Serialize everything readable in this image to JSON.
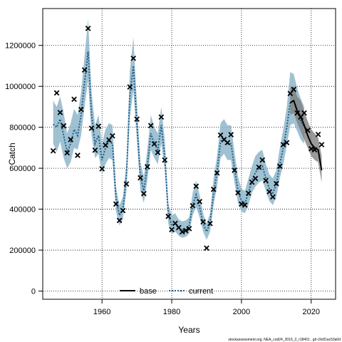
{
  "chart_data": {
    "type": "line",
    "xlabel": "Years",
    "ylabel": "Catch",
    "xlim": [
      1943,
      2027
    ],
    "ylim": [
      -40000,
      1380000
    ],
    "x_ticks": [
      1960,
      1980,
      2000,
      2020
    ],
    "y_ticks": [
      0,
      200000,
      400000,
      600000,
      800000,
      1000000,
      1200000
    ],
    "x_tick_labels": [
      "1960",
      "1980",
      "2000",
      "2020"
    ],
    "y_tick_labels": [
      "0",
      "200000",
      "400000",
      "600000",
      "800000",
      "1000000",
      "1200000"
    ],
    "grid": true,
    "legend": {
      "position": "bottom-center",
      "entries": [
        {
          "label": "base",
          "style": "solid",
          "color": "#000000"
        },
        {
          "label": "current",
          "style": "dotted",
          "color": "#1f5f8b"
        }
      ]
    },
    "footer": "stockassessment.org, NEA_cod24_2016_2_r18401 , git c9c81ac53a0d",
    "colors": {
      "band_current": "#8fb6c9",
      "band_base": "#7f7f7f",
      "line_base": "#000000",
      "line_current": "#1f5f8b",
      "observed": "#000000"
    },
    "observed": {
      "x": [
        1946,
        1947,
        1948,
        1949,
        1950,
        1951,
        1952,
        1953,
        1954,
        1955,
        1956,
        1957,
        1958,
        1959,
        1960,
        1961,
        1962,
        1963,
        1964,
        1965,
        1966,
        1967,
        1968,
        1969,
        1970,
        1971,
        1972,
        1973,
        1974,
        1975,
        1976,
        1977,
        1978,
        1979,
        1980,
        1981,
        1982,
        1983,
        1984,
        1985,
        1986,
        1987,
        1988,
        1989,
        1990,
        1991,
        1992,
        1993,
        1994,
        1995,
        1996,
        1997,
        1998,
        1999,
        2000,
        2001,
        2002,
        2003,
        2004,
        2005,
        2006,
        2007,
        2008,
        2009,
        2010,
        2011,
        2012,
        2013,
        2014,
        2015,
        2016,
        2017,
        2018,
        2019,
        2020,
        2021,
        2022,
        2023
      ],
      "y": [
        685000,
        968000,
        872000,
        807000,
        675000,
        740000,
        937000,
        663000,
        887000,
        1080000,
        1283000,
        795000,
        688000,
        805000,
        597000,
        713000,
        738000,
        758000,
        425000,
        345000,
        393000,
        523000,
        997000,
        1137000,
        840000,
        553000,
        476000,
        607000,
        808000,
        719000,
        677000,
        850000,
        640000,
        365000,
        300000,
        331000,
        310000,
        289000,
        295000,
        305000,
        417000,
        512000,
        437000,
        338000,
        210000,
        330000,
        497000,
        577000,
        762000,
        740000,
        725000,
        764000,
        590000,
        480000,
        425000,
        420000,
        478000,
        532000,
        550000,
        605000,
        640000,
        540000,
        485000,
        460000,
        525000,
        610000,
        715000,
        725000,
        965000,
        985000,
        870000,
        850000,
        870000,
        785000,
        695000,
        690000,
        765000,
        715000
      ]
    },
    "series": [
      {
        "name": "current",
        "x": [
          1946,
          1947,
          1948,
          1949,
          1950,
          1951,
          1952,
          1953,
          1954,
          1955,
          1956,
          1957,
          1958,
          1959,
          1960,
          1961,
          1962,
          1963,
          1964,
          1965,
          1966,
          1967,
          1968,
          1969,
          1970,
          1971,
          1972,
          1973,
          1974,
          1975,
          1976,
          1977,
          1978,
          1979,
          1980,
          1981,
          1982,
          1983,
          1984,
          1985,
          1986,
          1987,
          1988,
          1989,
          1990,
          1991,
          1992,
          1993,
          1994,
          1995,
          1996,
          1997,
          1998,
          1999,
          2000,
          2001,
          2002,
          2003,
          2004,
          2005,
          2006,
          2007,
          2008,
          2009,
          2010,
          2011,
          2012,
          2013,
          2014,
          2015,
          2016,
          2017,
          2018
        ],
        "y": [
          815000,
          800000,
          840000,
          760000,
          680000,
          720000,
          790000,
          760000,
          860000,
          1020000,
          1170000,
          860000,
          720000,
          760000,
          640000,
          700000,
          730000,
          720000,
          450000,
          370000,
          400000,
          560000,
          960000,
          1100000,
          820000,
          560000,
          490000,
          610000,
          770000,
          720000,
          690000,
          810000,
          660000,
          380000,
          320000,
          330000,
          310000,
          300000,
          305000,
          320000,
          420000,
          470000,
          410000,
          330000,
          290000,
          330000,
          480000,
          580000,
          730000,
          750000,
          720000,
          720000,
          600000,
          490000,
          440000,
          430000,
          480000,
          540000,
          580000,
          600000,
          610000,
          550000,
          500000,
          480000,
          520000,
          620000,
          700000,
          800000,
          920000,
          930000,
          880000,
          830000,
          800000
        ],
        "lower": [
          720000,
          680000,
          730000,
          650000,
          600000,
          630000,
          700000,
          690000,
          760000,
          900000,
          1030000,
          760000,
          650000,
          670000,
          570000,
          620000,
          650000,
          640000,
          390000,
          320000,
          350000,
          490000,
          850000,
          980000,
          740000,
          490000,
          430000,
          540000,
          690000,
          650000,
          620000,
          720000,
          590000,
          330000,
          280000,
          290000,
          270000,
          260000,
          265000,
          280000,
          370000,
          410000,
          360000,
          290000,
          250000,
          290000,
          420000,
          510000,
          650000,
          670000,
          640000,
          640000,
          530000,
          430000,
          390000,
          380000,
          420000,
          480000,
          510000,
          530000,
          540000,
          490000,
          440000,
          420000,
          460000,
          550000,
          620000,
          710000,
          810000,
          820000,
          780000,
          740000,
          720000
        ],
        "upper": [
          930000,
          900000,
          950000,
          870000,
          770000,
          820000,
          890000,
          860000,
          970000,
          1150000,
          1330000,
          970000,
          810000,
          860000,
          720000,
          790000,
          820000,
          810000,
          510000,
          420000,
          460000,
          630000,
          1080000,
          1240000,
          920000,
          630000,
          560000,
          690000,
          860000,
          800000,
          770000,
          900000,
          740000,
          430000,
          370000,
          380000,
          350000,
          340000,
          345000,
          360000,
          480000,
          540000,
          470000,
          380000,
          330000,
          380000,
          550000,
          660000,
          820000,
          840000,
          810000,
          810000,
          680000,
          560000,
          500000,
          490000,
          550000,
          610000,
          660000,
          680000,
          690000,
          620000,
          570000,
          550000,
          590000,
          700000,
          790000,
          900000,
          1070000,
          1060000,
          990000,
          940000,
          900000
        ]
      },
      {
        "name": "base",
        "x": [
          2014,
          2015,
          2016,
          2017,
          2018,
          2019,
          2020,
          2021,
          2022,
          2023
        ],
        "y": [
          920000,
          930000,
          880000,
          850000,
          810000,
          760000,
          720000,
          700000,
          690000,
          590000
        ],
        "lower": [
          860000,
          870000,
          820000,
          780000,
          740000,
          700000,
          660000,
          640000,
          630000,
          530000
        ],
        "upper": [
          990000,
          1000000,
          950000,
          930000,
          880000,
          830000,
          790000,
          770000,
          750000,
          660000
        ]
      }
    ]
  }
}
